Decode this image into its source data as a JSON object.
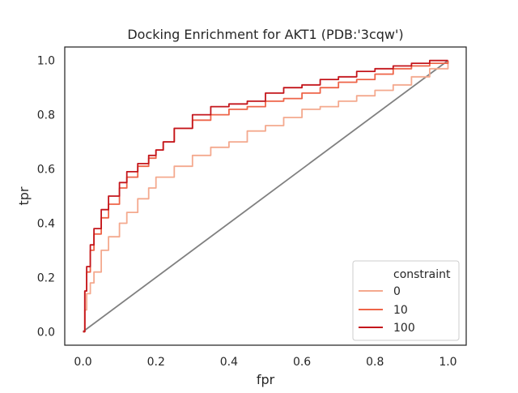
{
  "chart_data": {
    "type": "line",
    "title": "Docking Enrichment for AKT1 (PDB:'3cqw')",
    "xlabel": "fpr",
    "ylabel": "tpr",
    "xlim": [
      -0.05,
      1.05
    ],
    "ylim": [
      -0.05,
      1.05
    ],
    "xticks": [
      "0.0",
      "0.2",
      "0.4",
      "0.6",
      "0.8",
      "1.0"
    ],
    "yticks": [
      "0.0",
      "0.2",
      "0.4",
      "0.6",
      "0.8",
      "1.0"
    ],
    "grid": false,
    "legend": {
      "title": "constraint",
      "placement": "lower-right"
    },
    "series": [
      {
        "name": "0",
        "color": "#f4a98e",
        "x": [
          0,
          0.005,
          0.01,
          0.02,
          0.03,
          0.05,
          0.07,
          0.1,
          0.12,
          0.15,
          0.18,
          0.2,
          0.25,
          0.3,
          0.35,
          0.4,
          0.45,
          0.5,
          0.55,
          0.6,
          0.65,
          0.7,
          0.75,
          0.8,
          0.85,
          0.9,
          0.95,
          1.0
        ],
        "y": [
          0,
          0.08,
          0.14,
          0.18,
          0.22,
          0.3,
          0.35,
          0.4,
          0.44,
          0.49,
          0.53,
          0.57,
          0.61,
          0.65,
          0.68,
          0.7,
          0.74,
          0.76,
          0.79,
          0.82,
          0.83,
          0.85,
          0.87,
          0.89,
          0.91,
          0.94,
          0.97,
          1.0
        ]
      },
      {
        "name": "10",
        "color": "#ee6448",
        "x": [
          0,
          0.005,
          0.01,
          0.02,
          0.03,
          0.05,
          0.07,
          0.1,
          0.12,
          0.15,
          0.18,
          0.2,
          0.22,
          0.25,
          0.3,
          0.35,
          0.4,
          0.45,
          0.5,
          0.55,
          0.6,
          0.65,
          0.7,
          0.75,
          0.8,
          0.85,
          0.9,
          0.95,
          1.0
        ],
        "y": [
          0,
          0.15,
          0.22,
          0.3,
          0.36,
          0.42,
          0.47,
          0.53,
          0.57,
          0.61,
          0.64,
          0.67,
          0.7,
          0.75,
          0.78,
          0.8,
          0.82,
          0.83,
          0.85,
          0.86,
          0.88,
          0.9,
          0.92,
          0.93,
          0.95,
          0.97,
          0.98,
          0.99,
          1.0
        ]
      },
      {
        "name": "100",
        "color": "#c4161c",
        "x": [
          0,
          0.005,
          0.01,
          0.02,
          0.03,
          0.05,
          0.07,
          0.1,
          0.12,
          0.15,
          0.18,
          0.2,
          0.22,
          0.25,
          0.3,
          0.35,
          0.4,
          0.45,
          0.5,
          0.55,
          0.6,
          0.65,
          0.7,
          0.75,
          0.8,
          0.85,
          0.9,
          0.95,
          1.0
        ],
        "y": [
          0,
          0.15,
          0.24,
          0.32,
          0.38,
          0.45,
          0.5,
          0.55,
          0.59,
          0.62,
          0.65,
          0.67,
          0.7,
          0.75,
          0.8,
          0.83,
          0.84,
          0.85,
          0.88,
          0.9,
          0.91,
          0.93,
          0.94,
          0.96,
          0.97,
          0.98,
          0.99,
          1.0,
          1.0
        ]
      }
    ],
    "reference_line": {
      "color": "#808080",
      "x": [
        0,
        1
      ],
      "y": [
        0,
        1
      ]
    }
  }
}
